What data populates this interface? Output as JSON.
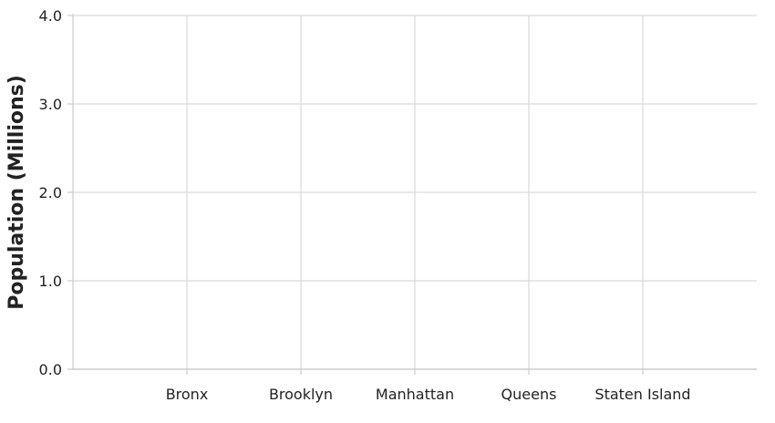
{
  "chart_data": {
    "type": "bar",
    "categories": [
      "Bronx",
      "Brooklyn",
      "Manhattan",
      "Queens",
      "Staten Island"
    ],
    "series": [],
    "xlabel": "",
    "ylabel": "Population (Millions)",
    "ylim": [
      0,
      4
    ],
    "yticks": [
      0,
      1,
      2,
      3,
      4
    ],
    "ytick_labels": [
      "0.0",
      "1.0",
      "2.0",
      "3.0",
      "4.0"
    ],
    "grid": true,
    "colors": {
      "grid": "#d9d9d9",
      "axis": "#cccccc",
      "text": "#222222"
    }
  }
}
